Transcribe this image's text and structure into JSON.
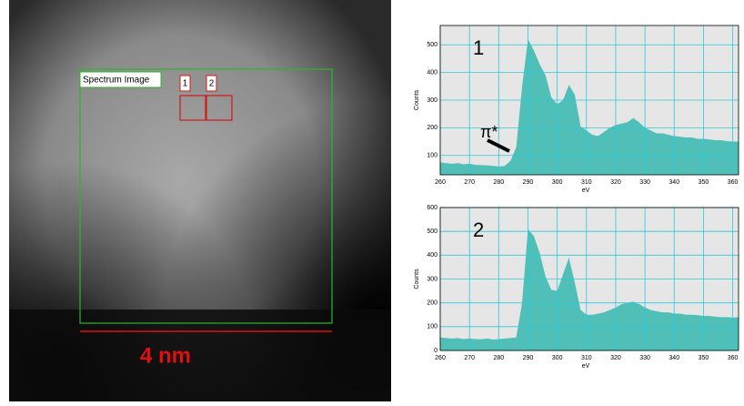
{
  "image": {
    "label": "Spectrum Image",
    "regions": [
      "1",
      "2"
    ],
    "scale_bar": "4 nm"
  },
  "chart_data": [
    {
      "type": "area",
      "annotation": "1",
      "edge_label": "π*",
      "x_label": "eV",
      "y_label": "Counts",
      "color": "#4fbfb7",
      "grid": true,
      "x": [
        260,
        262,
        264,
        266,
        268,
        270,
        272,
        274,
        276,
        278,
        280,
        282,
        284,
        286,
        288,
        290,
        292,
        294,
        296,
        298,
        300,
        302,
        304,
        306,
        308,
        310,
        312,
        314,
        316,
        318,
        320,
        322,
        324,
        326,
        328,
        330,
        332,
        334,
        336,
        338,
        340,
        342,
        344,
        346,
        348,
        350,
        352,
        354,
        356,
        358,
        360,
        362
      ],
      "values": [
        75,
        72,
        70,
        72,
        68,
        70,
        66,
        65,
        64,
        62,
        60,
        62,
        80,
        130,
        350,
        520,
        480,
        430,
        390,
        310,
        285,
        300,
        355,
        320,
        205,
        190,
        175,
        170,
        185,
        200,
        210,
        215,
        220,
        235,
        220,
        200,
        190,
        180,
        180,
        175,
        170,
        168,
        165,
        165,
        160,
        160,
        158,
        155,
        155,
        152,
        150,
        150
      ],
      "xlim": [
        260,
        362
      ],
      "xticks": [
        260,
        270,
        280,
        290,
        300,
        310,
        320,
        330,
        340,
        350,
        360
      ],
      "ylim": [
        30,
        570
      ],
      "yticks": [
        100,
        200,
        300,
        400,
        500
      ]
    },
    {
      "type": "area",
      "annotation": "2",
      "x_label": "eV",
      "y_label": "Counts",
      "color": "#4fbfb7",
      "grid": true,
      "x": [
        260,
        262,
        264,
        266,
        268,
        270,
        272,
        274,
        276,
        278,
        280,
        282,
        284,
        286,
        288,
        290,
        292,
        294,
        296,
        298,
        300,
        302,
        304,
        306,
        308,
        310,
        312,
        314,
        316,
        318,
        320,
        322,
        324,
        326,
        328,
        330,
        332,
        334,
        336,
        338,
        340,
        342,
        344,
        346,
        348,
        350,
        352,
        354,
        356,
        358,
        360,
        362
      ],
      "values": [
        55,
        52,
        50,
        52,
        48,
        50,
        48,
        47,
        50,
        46,
        48,
        50,
        52,
        55,
        200,
        510,
        480,
        410,
        310,
        255,
        250,
        320,
        390,
        285,
        170,
        150,
        150,
        155,
        160,
        170,
        180,
        195,
        200,
        205,
        195,
        180,
        170,
        165,
        160,
        160,
        155,
        155,
        150,
        150,
        148,
        145,
        145,
        142,
        140,
        140,
        138,
        140
      ],
      "xlim": [
        260,
        362
      ],
      "xticks": [
        260,
        270,
        280,
        290,
        300,
        310,
        320,
        330,
        340,
        350,
        360
      ],
      "ylim": [
        0,
        600
      ],
      "yticks": [
        0,
        100,
        200,
        300,
        400,
        500,
        600
      ]
    }
  ]
}
